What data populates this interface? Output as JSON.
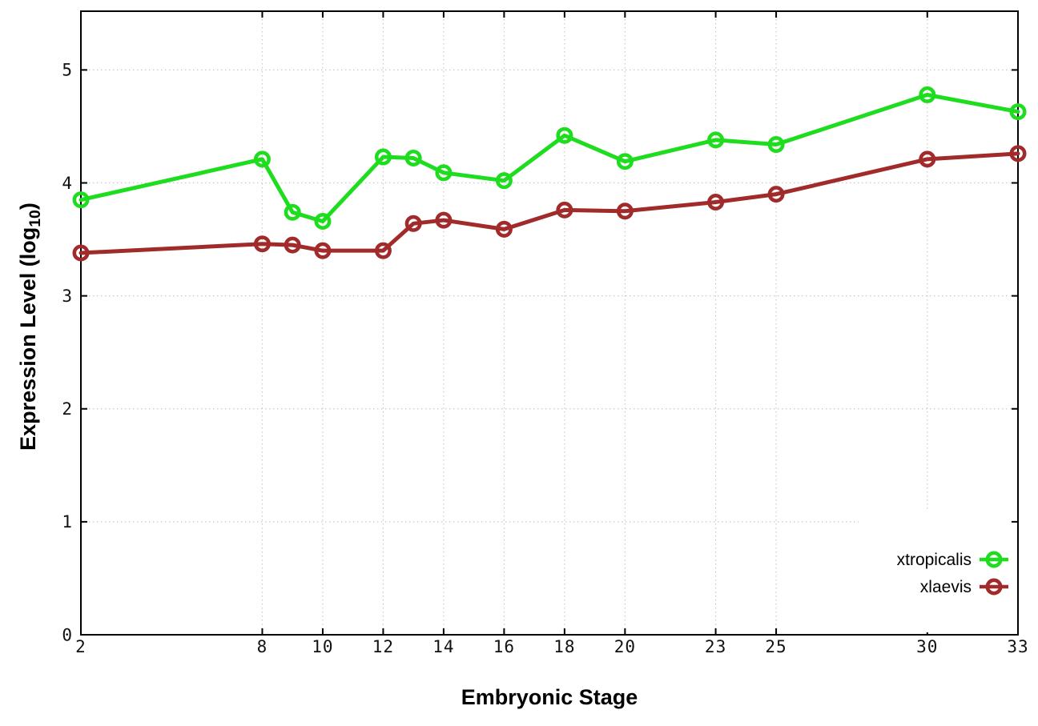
{
  "chart_data": {
    "type": "line",
    "title": "",
    "xlabel": "Embryonic Stage",
    "ylabel": "Expression Level (log10)",
    "ylabel_parts": {
      "main": "Expression Level (log",
      "sub": "10",
      "close": ")"
    },
    "xlim": [
      2,
      33
    ],
    "ylim": [
      0,
      5.52
    ],
    "xticks": [
      2,
      8,
      10,
      12,
      14,
      16,
      18,
      20,
      23,
      25,
      30,
      33
    ],
    "yticks": [
      0,
      1,
      2,
      3,
      4,
      5
    ],
    "grid": true,
    "grid_style": "dotted",
    "legend_position": "inside-bottom-right",
    "background_color": "#ffffff",
    "border_color": "#000000",
    "grid_color": "#c9c9c9",
    "tick_label_color": "#111111",
    "categories_note": "x values are embryonic stage numbers",
    "series": [
      {
        "name": "xtropicalis",
        "color": "#1edc1e",
        "marker": "open-circle",
        "x": [
          2,
          8,
          9,
          10,
          12,
          13,
          14,
          16,
          18,
          20,
          23,
          25,
          30,
          33
        ],
        "y": [
          3.85,
          4.21,
          3.74,
          3.66,
          4.23,
          4.22,
          4.09,
          4.02,
          4.42,
          4.19,
          4.38,
          4.34,
          4.78,
          4.63
        ]
      },
      {
        "name": "xlaevis",
        "color": "#a12a2a",
        "marker": "open-circle",
        "x": [
          2,
          8,
          9,
          10,
          12,
          13,
          14,
          16,
          18,
          20,
          23,
          25,
          30,
          33
        ],
        "y": [
          3.38,
          3.46,
          3.45,
          3.4,
          3.4,
          3.64,
          3.67,
          3.59,
          3.76,
          3.75,
          3.83,
          3.9,
          4.21,
          4.26
        ]
      }
    ]
  }
}
